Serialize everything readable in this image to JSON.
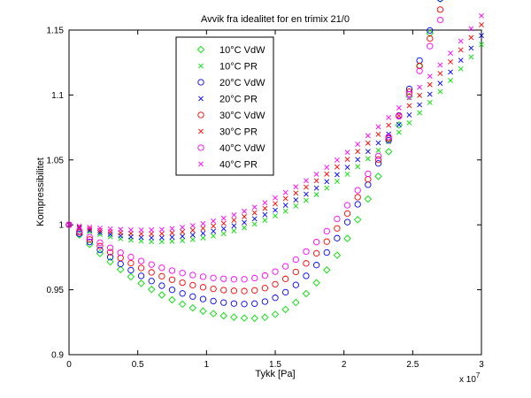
{
  "chart_data": {
    "type": "scatter",
    "title": "Avvik fra idealitet for en trimix 21/0",
    "xlabel": "Tykk [Pa]",
    "ylabel": "Kompressibilitet",
    "x_exponent_label": "x 10",
    "x_exponent_power": "7",
    "xlim": [
      0,
      3
    ],
    "ylim": [
      0.9,
      1.15
    ],
    "xticks": [
      "0",
      "0.5",
      "1",
      "1.5",
      "2",
      "2.5",
      "3"
    ],
    "yticks": [
      "0.9",
      "0.95",
      "1",
      "1.05",
      "1.1",
      "1.15"
    ],
    "legend_position": "top-left",
    "x": [
      0,
      0.075,
      0.15,
      0.225,
      0.3,
      0.375,
      0.45,
      0.525,
      0.6,
      0.675,
      0.75,
      0.825,
      0.9,
      0.975,
      1.05,
      1.125,
      1.2,
      1.275,
      1.35,
      1.425,
      1.5,
      1.575,
      1.65,
      1.725,
      1.8,
      1.875,
      1.95,
      2.025,
      2.1,
      2.175,
      2.25,
      2.325,
      2.4,
      2.475,
      2.55,
      2.625,
      2.7,
      2.775,
      2.85,
      2.925,
      3.0
    ],
    "series": [
      {
        "name": "10°C VdW",
        "marker": "diamond",
        "color": "#00e000",
        "zmin": 0.928,
        "xmin": 1.35,
        "k": 0.135,
        "noise_seed": 1
      },
      {
        "name": "10°C PR",
        "marker": "x",
        "color": "#00e000",
        "zmin": 0.987,
        "xmin": 0.65,
        "k": 0.0275,
        "noise_seed": 2
      },
      {
        "name": "20°C VdW",
        "marker": "circle",
        "color": "#0000ff",
        "zmin": 0.939,
        "xmin": 1.3,
        "k": 0.12,
        "noise_seed": 3
      },
      {
        "name": "20°C PR",
        "marker": "x",
        "color": "#0000ff",
        "zmin": 0.99,
        "xmin": 0.62,
        "k": 0.0275,
        "noise_seed": 4
      },
      {
        "name": "30°C VdW",
        "marker": "circle",
        "color": "#ff0000",
        "zmin": 0.949,
        "xmin": 1.28,
        "k": 0.1075,
        "noise_seed": 5
      },
      {
        "name": "30°C PR",
        "marker": "x",
        "color": "#ff0000",
        "zmin": 0.993,
        "xmin": 0.58,
        "k": 0.0275,
        "noise_seed": 6
      },
      {
        "name": "40°C VdW",
        "marker": "circle",
        "color": "#ff00ff",
        "zmin": 0.958,
        "xmin": 1.25,
        "k": 0.095,
        "noise_seed": 7
      },
      {
        "name": "40°C PR",
        "marker": "x",
        "color": "#ff00ff",
        "zmin": 0.996,
        "xmin": 0.55,
        "k": 0.0275,
        "noise_seed": 8
      }
    ]
  }
}
